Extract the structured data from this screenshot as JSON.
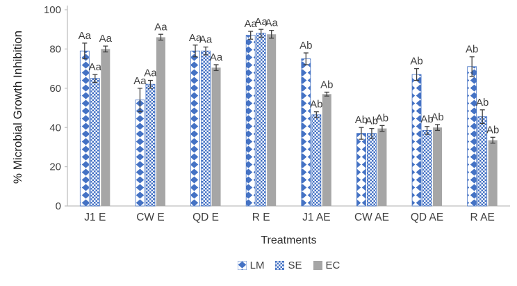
{
  "chart_data": {
    "type": "bar",
    "title": "",
    "xlabel": "Treatments",
    "ylabel": "% Microbial Growth Inhibition",
    "ylim": [
      0,
      100
    ],
    "yticks": [
      0,
      20,
      40,
      60,
      80,
      100
    ],
    "grid": false,
    "legend_position": "bottom",
    "categories": [
      "J1 E",
      "CW E",
      "QD E",
      "R E",
      "J1 AE",
      "CW AE",
      "QD AE",
      "R AE"
    ],
    "series": [
      {
        "name": "LM",
        "pattern": "diamond",
        "color": "#4472c4",
        "values": [
          79,
          54,
          79,
          87,
          75,
          37,
          67,
          71
        ],
        "errors": [
          4,
          6,
          3,
          2,
          3,
          3,
          3,
          5
        ],
        "labels": [
          "Aa",
          "Aa",
          "Aa",
          "Aa",
          "Ab",
          "Ab",
          "Ab",
          "Ab"
        ]
      },
      {
        "name": "SE",
        "pattern": "checker",
        "color": "#4472c4",
        "values": [
          65,
          62,
          79,
          88,
          46.5,
          37,
          38.5,
          45.5
        ],
        "errors": [
          2,
          2,
          2,
          2,
          1.5,
          2.5,
          2,
          3.5
        ],
        "labels": [
          "Aa",
          "Aa",
          "Aa",
          "Aa",
          "Ab",
          "Ab",
          "Ab",
          "Ab"
        ]
      },
      {
        "name": "EC",
        "pattern": "solid",
        "color": "#a6a6a6",
        "values": [
          80,
          86,
          70.5,
          87.5,
          57,
          39.5,
          40,
          33.5
        ],
        "errors": [
          1.5,
          1.5,
          1.5,
          2,
          1,
          1.5,
          1.5,
          1.5
        ],
        "labels": [
          "Aa",
          "Aa",
          "Aa",
          "Aa",
          "Ab",
          "Ab",
          "Ab",
          "Ab"
        ]
      }
    ],
    "colors": {
      "axis_line": "#bfbfbf",
      "tick_text": "#404040",
      "bar_label_text": "#404040",
      "error_bar": "#404040"
    }
  }
}
